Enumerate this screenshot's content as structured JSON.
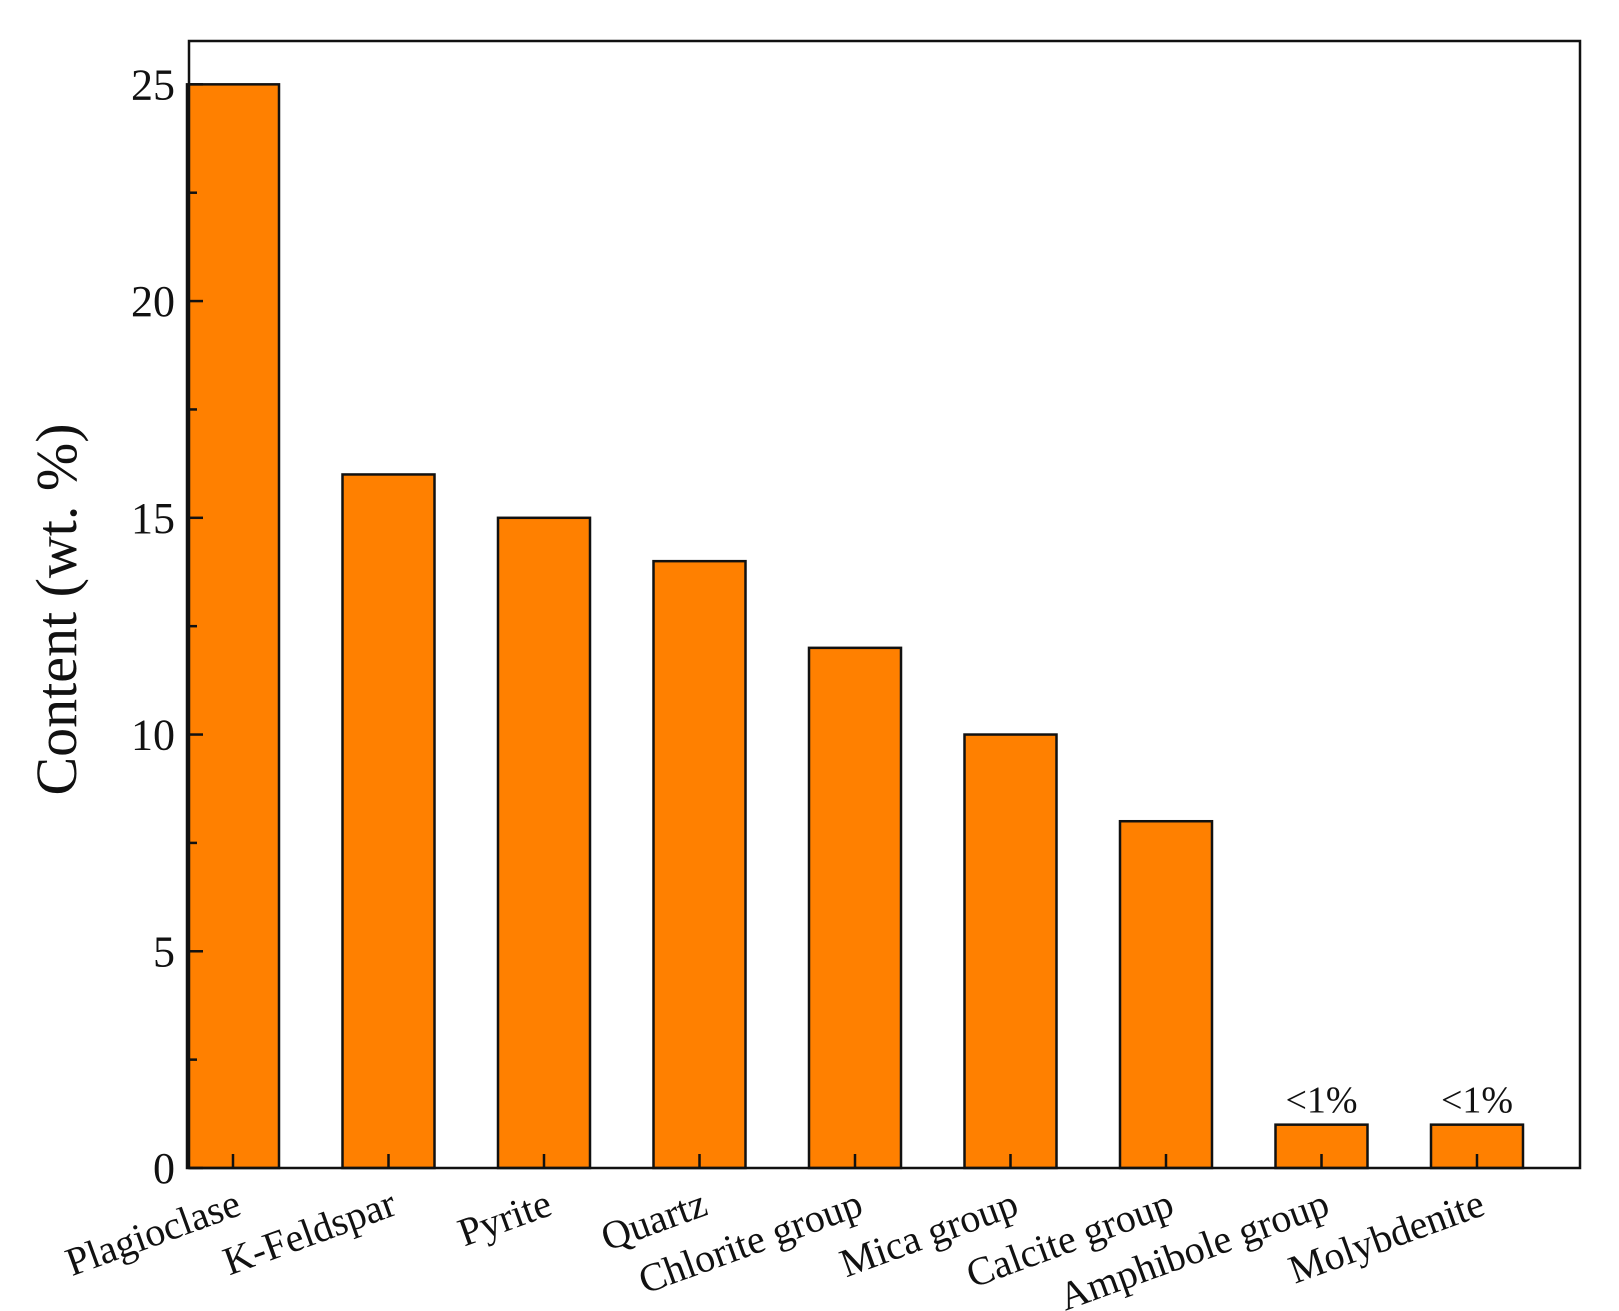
{
  "chart_data": {
    "type": "bar",
    "categories": [
      "Plagioclase",
      "K-Feldspar",
      "Pyrite",
      "Quartz",
      "Chlorite group",
      "Mica group",
      "Calcite group",
      "Amphibole group",
      "Molybdenite"
    ],
    "values": [
      25,
      16,
      15,
      14,
      12,
      10,
      8,
      1,
      1
    ],
    "annotations": [
      "",
      "",
      "",
      "",
      "",
      "",
      "",
      "<1%",
      "<1%"
    ],
    "title": "",
    "xlabel": "",
    "ylabel": "Content (wt. %)",
    "ylim": [
      0,
      26
    ],
    "yticks": [
      0,
      5,
      10,
      15,
      20,
      25
    ],
    "grid": false,
    "bar_color": "#ff8000",
    "bar_edge_color": "#111111"
  }
}
